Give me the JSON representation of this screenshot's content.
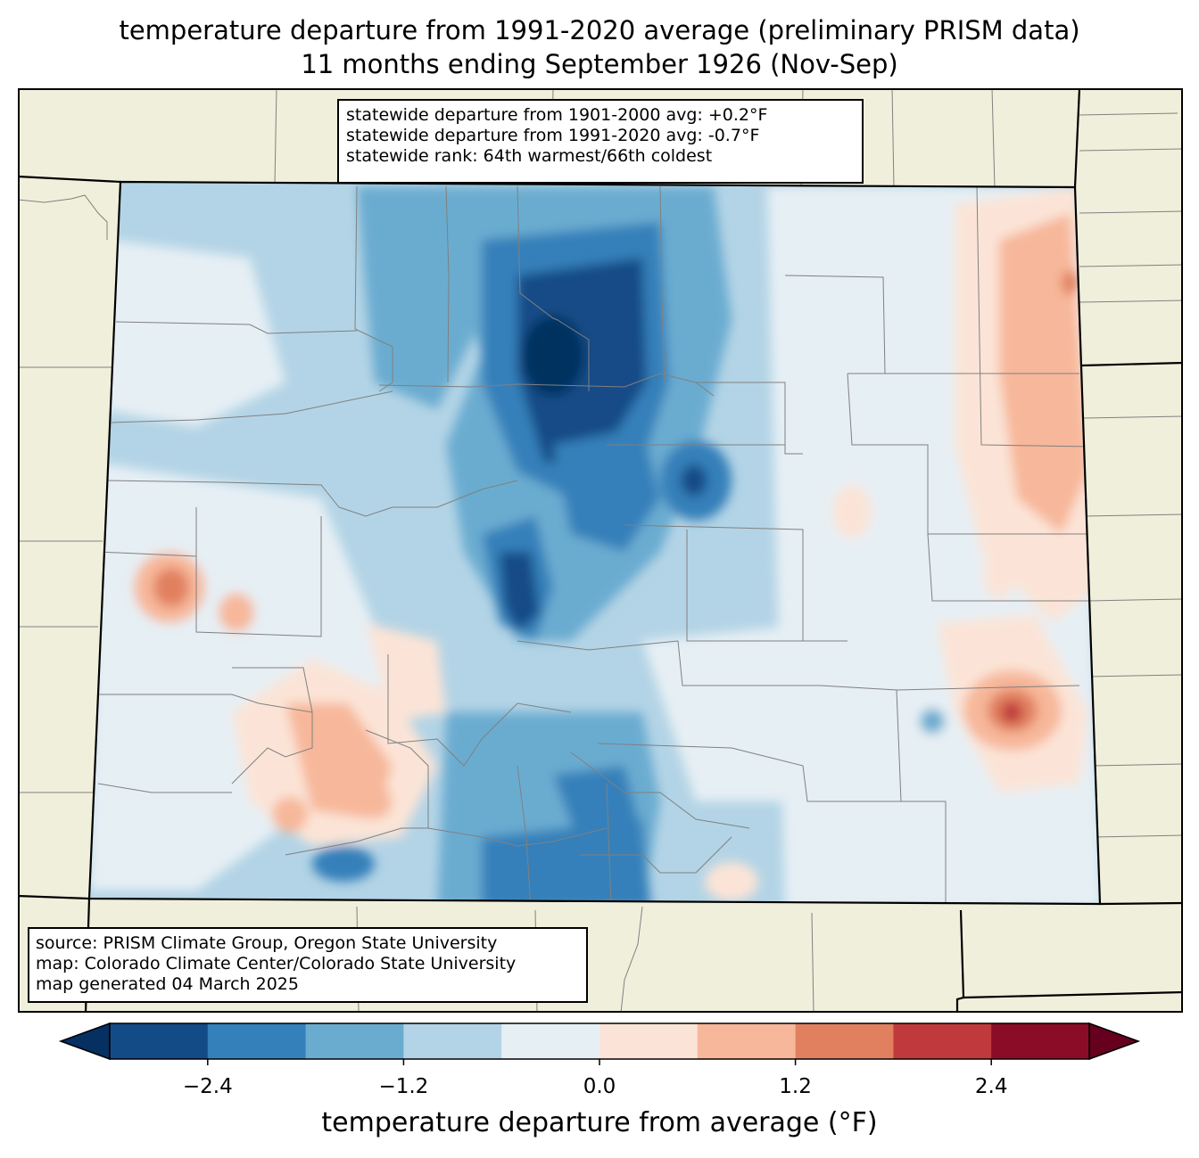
{
  "title_line1": "temperature departure from 1991-2020 average (preliminary PRISM data)",
  "title_line2": "11 months ending September 1926 (Nov-Sep)",
  "stats": {
    "line1": "statewide departure from 1901-2000 avg: +0.2°F",
    "line2": "statewide departure from 1991-2020 avg: -0.7°F",
    "line3": "statewide rank: 64th warmest/66th coldest"
  },
  "credits": {
    "line1": "source: PRISM Climate Group, Oregon State University",
    "line2": "map: Colorado Climate Center/Colorado State University",
    "line3": "map generated 04 March 2025"
  },
  "colorbar": {
    "label": "temperature departure from average (°F)",
    "ticks": [
      "−2.4",
      "−1.2",
      "0.0",
      "1.2",
      "2.4"
    ],
    "range": [
      -3.0,
      3.0
    ],
    "step": 0.6,
    "colors": [
      "#134b87",
      "#3480ba",
      "#6aacd0",
      "#b3d4e6",
      "#e6eff4",
      "#fbe4d7",
      "#f7b79a",
      "#e1805f",
      "#c03a3d",
      "#8a0c26"
    ],
    "under_color": "#053061",
    "over_color": "#67001f"
  },
  "map_colors": {
    "land": "#f0efdc",
    "state_border": "#000000",
    "county_border": "#808080"
  }
}
